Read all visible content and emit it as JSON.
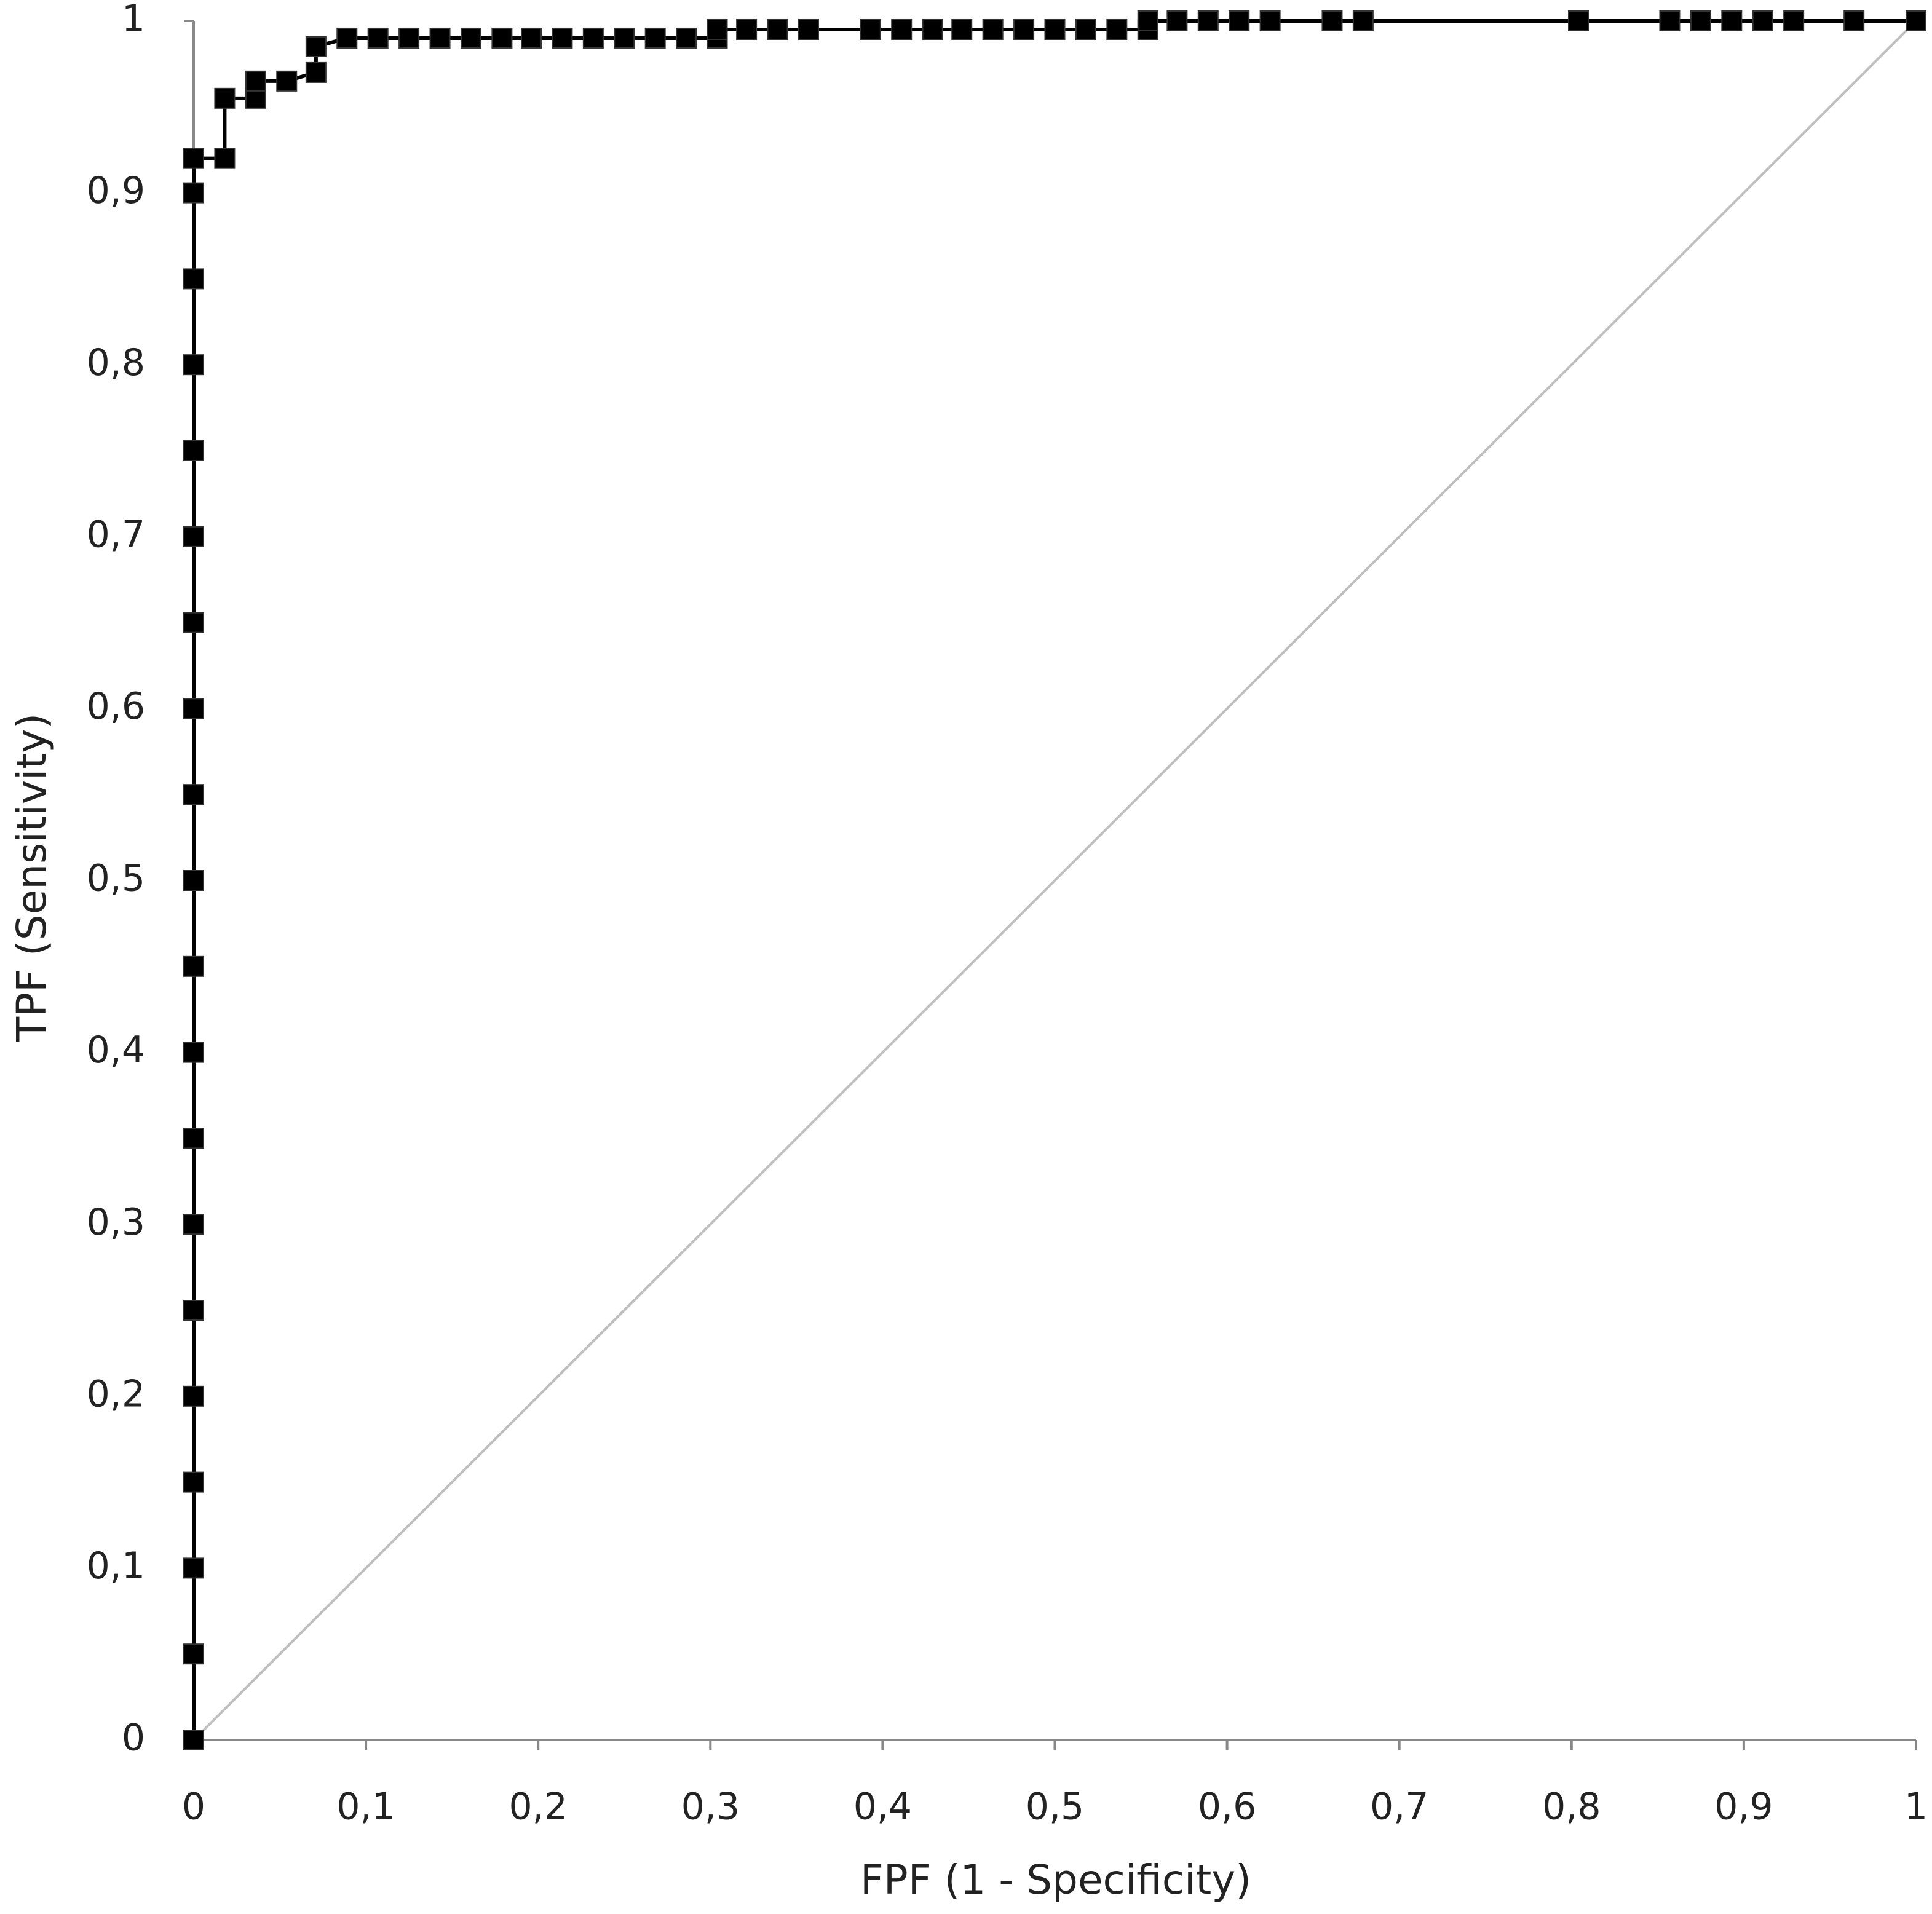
{
  "chart_data": {
    "type": "line",
    "xlabel": "FPF (1 - Specificity)",
    "ylabel": "TPF (Sensitivity)",
    "xlim": [
      0,
      1
    ],
    "ylim": [
      0,
      1
    ],
    "xticks": [
      0,
      {
        "value": 0.1,
        "label": "0,1"
      },
      {
        "value": 0.2,
        "label": "0,2"
      },
      {
        "value": 0.3,
        "label": "0,3"
      },
      {
        "value": 0.4,
        "label": "0,4"
      },
      {
        "value": 0.5,
        "label": "0,5"
      },
      {
        "value": 0.6,
        "label": "0,6"
      },
      {
        "value": 0.7,
        "label": "0,7"
      },
      {
        "value": 0.8,
        "label": "0,8"
      },
      {
        "value": 0.9,
        "label": "0,9"
      },
      1
    ],
    "yticks": [
      0,
      {
        "value": 0.1,
        "label": "0,1"
      },
      {
        "value": 0.2,
        "label": "0,2"
      },
      {
        "value": 0.3,
        "label": "0,3"
      },
      {
        "value": 0.4,
        "label": "0,4"
      },
      {
        "value": 0.5,
        "label": "0,5"
      },
      {
        "value": 0.6,
        "label": "0,6"
      },
      {
        "value": 0.7,
        "label": "0,7"
      },
      {
        "value": 0.8,
        "label": "0,8"
      },
      {
        "value": 0.9,
        "label": "0,9"
      },
      1
    ],
    "grid": false,
    "series": [
      {
        "color": "#bfbfbf",
        "marker": "none",
        "x": [
          0,
          1
        ],
        "values": [
          0,
          1
        ]
      },
      {
        "color": "#000000",
        "marker": "square",
        "x": [
          0,
          0,
          0,
          0,
          0,
          0,
          0,
          0,
          0,
          0,
          0,
          0,
          0,
          0,
          0,
          0,
          0,
          0,
          0,
          0,
          0.018,
          0.018,
          0.036,
          0.036,
          0.054,
          0.071,
          0.071,
          0.089,
          0.107,
          0.125,
          0.143,
          0.161,
          0.179,
          0.196,
          0.214,
          0.232,
          0.25,
          0.268,
          0.286,
          0.304,
          0.304,
          0.321,
          0.339,
          0.357,
          0.393,
          0.411,
          0.429,
          0.446,
          0.464,
          0.482,
          0.5,
          0.518,
          0.536,
          0.554,
          0.554,
          0.571,
          0.589,
          0.607,
          0.625,
          0.661,
          0.679,
          0.804,
          0.857,
          0.875,
          0.893,
          0.911,
          0.929,
          0.964,
          1
        ],
        "values": [
          0,
          0.05,
          0.1,
          0.15,
          0.2,
          0.25,
          0.3,
          0.35,
          0.4,
          0.45,
          0.5,
          0.55,
          0.6,
          0.65,
          0.7,
          0.75,
          0.8,
          0.85,
          0.9,
          0.92,
          0.92,
          0.955,
          0.955,
          0.965,
          0.965,
          0.97,
          0.985,
          0.99,
          0.99,
          0.99,
          0.99,
          0.99,
          0.99,
          0.99,
          0.99,
          0.99,
          0.99,
          0.99,
          0.99,
          0.99,
          0.995,
          0.995,
          0.995,
          0.995,
          0.995,
          0.995,
          0.995,
          0.995,
          0.995,
          0.995,
          0.995,
          0.995,
          0.995,
          0.995,
          1,
          1,
          1,
          1,
          1,
          1,
          1,
          1,
          1,
          1,
          1,
          1,
          1,
          1,
          1
        ]
      }
    ]
  }
}
